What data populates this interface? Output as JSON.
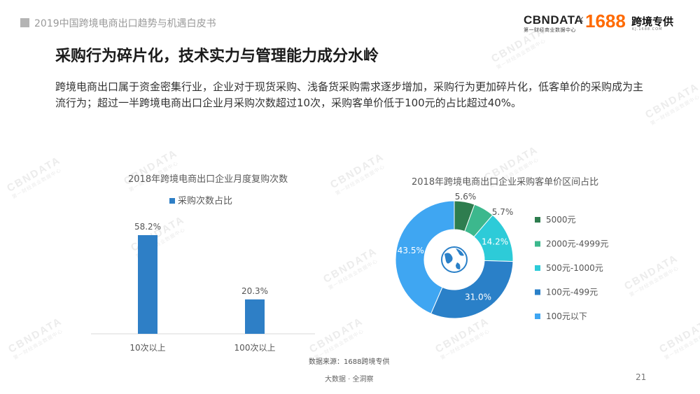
{
  "header": {
    "report_title": "2019中国跨境电商出口趋势与机遇白皮书"
  },
  "logos": {
    "cbndata": "CBNDATA",
    "cbndata_sub": "第一财经商业数据中心",
    "times": "×",
    "brand_1688": "1688",
    "partner": "跨境专供",
    "partner_sub": "KJ.1688.COM"
  },
  "watermark": {
    "text": "CBNDATA",
    "sub": "第一财经商业数据中心"
  },
  "heading": "采购行为碎片化，技术实力与管理能力成分水岭",
  "description": "跨境电商出口属于资金密集行业，企业对于现货采购、浅备货采购需求逐步增加，采购行为更加碎片化，低客单价的采购成为主流行为；超过一半跨境电商出口企业月采购次数超过10次，采购客单价低于100元的占比超过40%。",
  "footer": {
    "source": "数据来源：1688跨境专供",
    "tagline": "大数据 · 全洞察",
    "page_number": "21"
  },
  "chart_data": [
    {
      "type": "bar",
      "title": "2018年跨境电商出口企业月度复购次数",
      "categories": [
        "10次以上",
        "100次以上"
      ],
      "series": [
        {
          "name": "采购次数占比",
          "values": [
            58.2,
            20.3
          ],
          "labels": [
            "58.2%",
            "20.3%"
          ],
          "color": "#2e7fc6"
        }
      ],
      "ylim": [
        0,
        70
      ],
      "legend": "top"
    },
    {
      "type": "pie",
      "title": "2018年跨境电商出口企业采购客单价区间占比",
      "donut": true,
      "center_icon": "globe-icon",
      "slices": [
        {
          "label": "5000元",
          "value": 5.6,
          "text": "5.6%",
          "color": "#2e7d4f"
        },
        {
          "label": "2000元-4999元",
          "value": 5.7,
          "text": "5.7%",
          "color": "#3cb88d"
        },
        {
          "label": "500元-1000元",
          "value": 14.2,
          "text": "14.2%",
          "color": "#2dcbd8"
        },
        {
          "label": "100元-499元",
          "value": 31.0,
          "text": "31.0%",
          "color": "#2a80c8"
        },
        {
          "label": "100元以下",
          "value": 43.5,
          "text": "43.5%",
          "color": "#3fa6f2"
        }
      ],
      "legend": "right"
    }
  ]
}
